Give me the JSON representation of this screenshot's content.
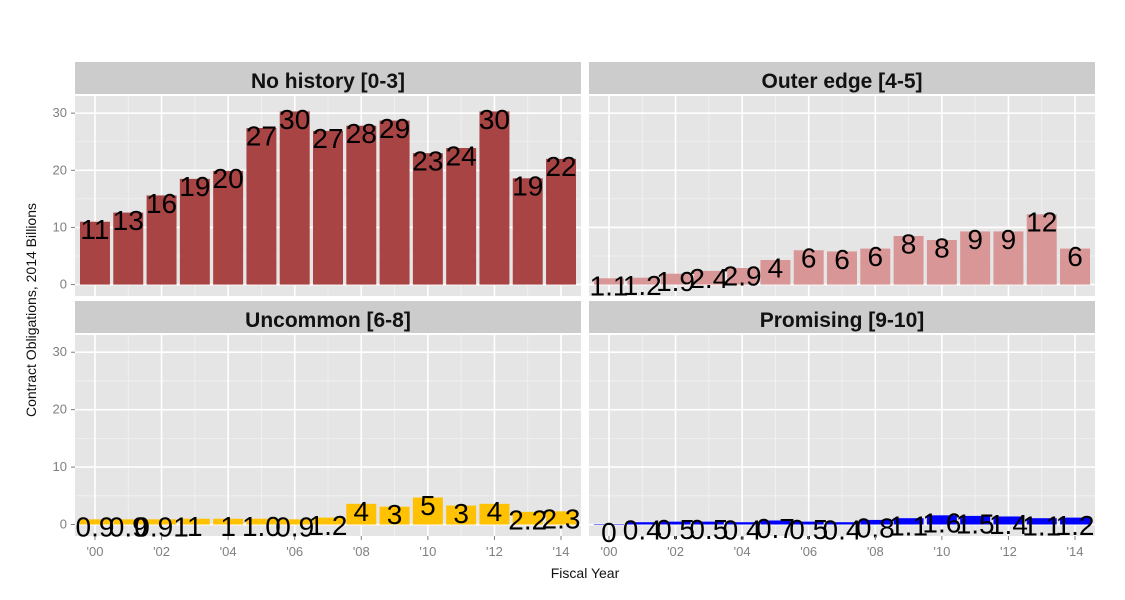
{
  "chart_data": {
    "type": "bar",
    "xlabel": "Fiscal Year",
    "ylabel": "Contract Obligations, 2014 Billions",
    "ylim": [
      -2,
      33
    ],
    "y_ticks": [
      0,
      10,
      20,
      30
    ],
    "x_tick_years": [
      2000,
      2002,
      2004,
      2006,
      2008,
      2010,
      2012,
      2014
    ],
    "x_tick_labels": [
      "'00",
      "'02",
      "'04",
      "'06",
      "'08",
      "'10",
      "'12",
      "'14"
    ],
    "years": [
      2000,
      2001,
      2002,
      2003,
      2004,
      2005,
      2006,
      2007,
      2008,
      2009,
      2010,
      2011,
      2012,
      2013,
      2014
    ],
    "grid": true,
    "legend": "none",
    "panels": [
      {
        "title": "No history [0-3]",
        "color": "#a94444",
        "values": [
          11,
          12.6,
          15.6,
          18.5,
          19.9,
          27.4,
          30.3,
          26.9,
          27.8,
          28.7,
          23.0,
          23.9,
          30.3,
          18.6,
          22.0
        ],
        "labels": [
          "11",
          "13",
          "16",
          "19",
          "20",
          "27",
          "30",
          "27",
          "28",
          "29",
          "23",
          "24",
          "30",
          "19",
          "22"
        ]
      },
      {
        "title": "Outer edge [4-5]",
        "color": "#d89696",
        "values": [
          1.1,
          1.2,
          1.9,
          2.4,
          2.9,
          4.3,
          6.0,
          5.8,
          6.3,
          8.5,
          7.8,
          9.3,
          9.3,
          12.3,
          6.3
        ],
        "labels": [
          "1.1",
          "1.2",
          "1.9",
          "2.4",
          "2.9",
          "4",
          "6",
          "6",
          "6",
          "8",
          "8",
          "9",
          "9",
          "12",
          "6"
        ]
      },
      {
        "title": "Uncommon [6-8]",
        "color": "#ffc100",
        "values": [
          0.9,
          0.9,
          0.9,
          1.0,
          1.0,
          1.0,
          0.9,
          1.2,
          3.6,
          3.1,
          4.7,
          3.3,
          3.6,
          2.2,
          2.3
        ],
        "labels": [
          "0.9",
          "0.9",
          "0.91",
          "1",
          "1",
          "1.0",
          "0.9",
          "1.2",
          "4",
          "3",
          "5",
          "3",
          "4",
          "2.2",
          "2.3"
        ]
      },
      {
        "title": "Promising [9-10]",
        "color": "#0000ff",
        "values": [
          0.0,
          0.4,
          0.5,
          0.5,
          0.4,
          0.7,
          0.5,
          0.4,
          0.8,
          1.1,
          1.6,
          1.5,
          1.4,
          1.1,
          1.2
        ],
        "labels": [
          "0",
          "0.4",
          "0.5",
          "0.5",
          "0.4",
          "0.7",
          "0.5",
          "0.4",
          "0.8",
          "1.1",
          "1.6",
          "1.5",
          "1.4",
          "1.1",
          "1.2"
        ]
      }
    ]
  }
}
